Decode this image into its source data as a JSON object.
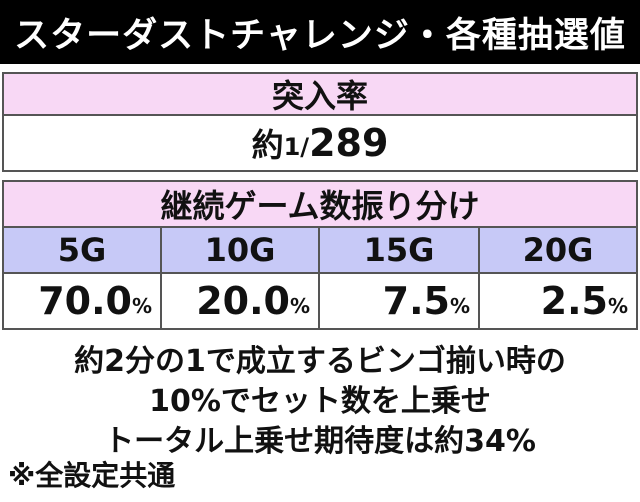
{
  "title": "スターダストチャレンジ・各種抽選値",
  "entry": {
    "header": "突入率",
    "value_prefix": "約",
    "value_numerator": "1/",
    "value_denominator": "289"
  },
  "distribution": {
    "header": "継続ゲーム数振り分け",
    "columns": [
      {
        "games": "5G",
        "value": "70.0",
        "unit": "%"
      },
      {
        "games": "10G",
        "value": "20.0",
        "unit": "%"
      },
      {
        "games": "15G",
        "value": "7.5",
        "unit": "%"
      },
      {
        "games": "20G",
        "value": "2.5",
        "unit": "%"
      }
    ]
  },
  "notes": [
    "約2分の1で成立するビンゴ揃い時の",
    "10%でセット数を上乗せ",
    "トータル上乗せ期待度は約34%"
  ],
  "footnote": "※全設定共通",
  "colors": {
    "pink": "#f8d8f5",
    "blue": "#c7c9f7",
    "title_bg": "#000000"
  }
}
